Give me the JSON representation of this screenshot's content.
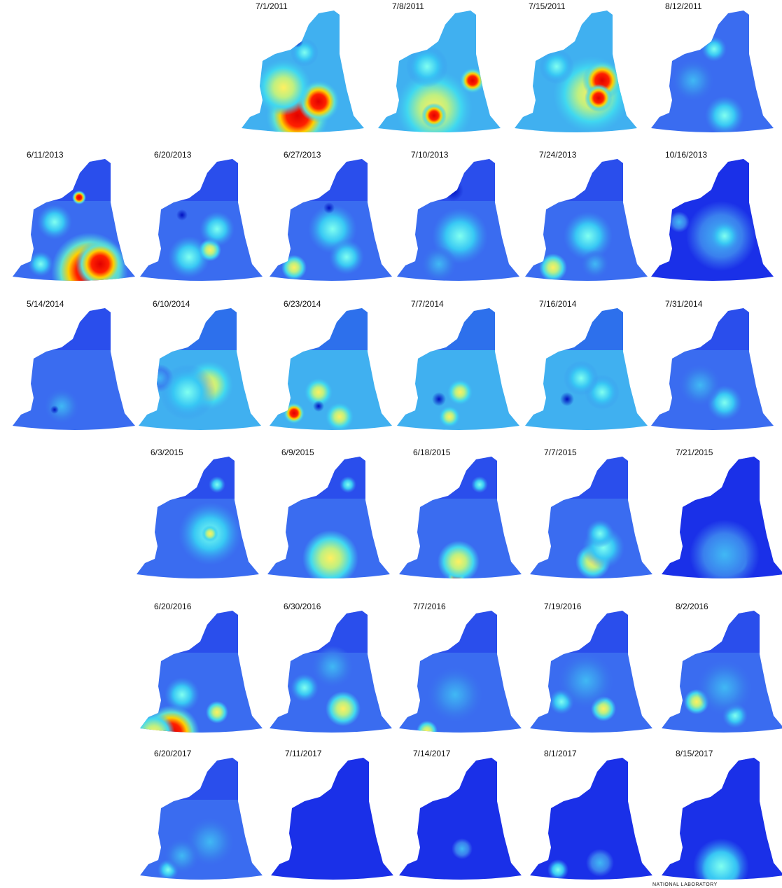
{
  "rows": [
    [
      "7/1/2011",
      "7/8/2011",
      "7/15/2011",
      "8/12/2011"
    ],
    [
      "6/11/2013",
      "6/20/2013",
      "6/27/2013",
      "7/10/2013",
      "7/24/2013",
      "10/16/2013"
    ],
    [
      "5/14/2014",
      "6/10/2014",
      "6/23/2014",
      "7/7/2014",
      "7/16/2014",
      "7/31/2014"
    ],
    [
      "6/3/2015",
      "6/9/2015",
      "6/18/2015",
      "7/7/2015",
      "7/21/2015"
    ],
    [
      "6/20/2016",
      "6/30/2016",
      "7/7/2016",
      "7/19/2016",
      "8/2/2016"
    ],
    [
      "6/20/2017",
      "7/11/2017",
      "7/14/2017",
      "8/1/2017",
      "8/15/2017"
    ]
  ],
  "footer": "NATIONAL LABORATORY"
}
